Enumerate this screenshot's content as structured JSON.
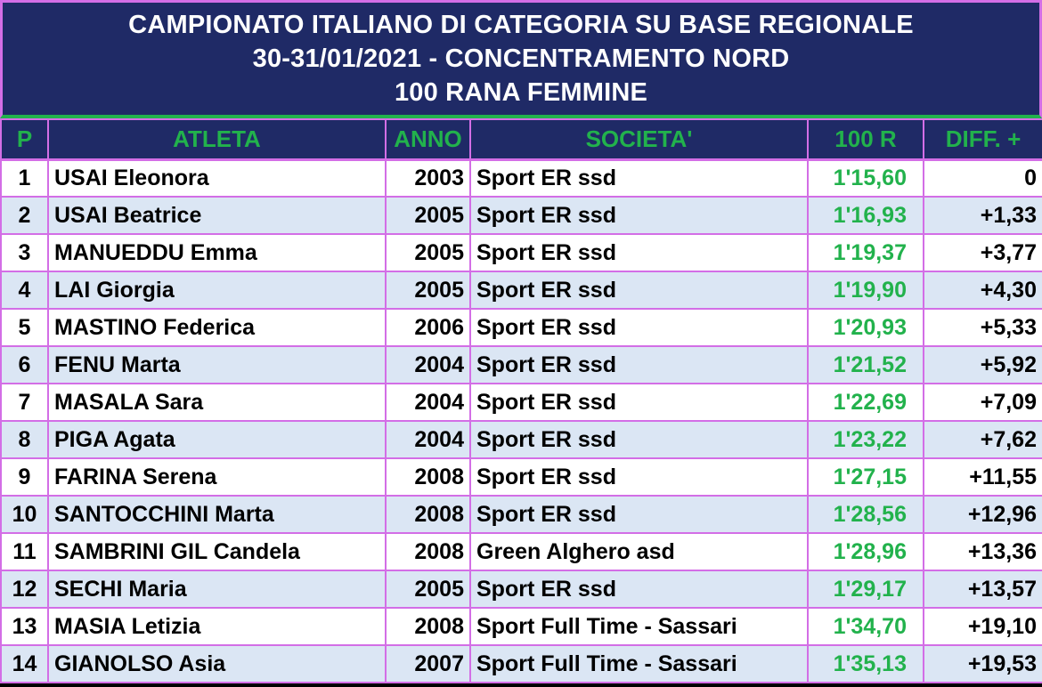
{
  "title": {
    "line1": "CAMPIONATO ITALIANO DI CATEGORIA SU BASE REGIONALE",
    "line2": "30-31/01/2021 - CONCENTRAMENTO NORD",
    "line3": "100 RANA FEMMINE"
  },
  "columns": {
    "pos": "P",
    "athlete": "ATLETA",
    "year": "ANNO",
    "club": "SOCIETA'",
    "time": "100 R",
    "diff": "DIFF. +"
  },
  "rows": [
    {
      "pos": "1",
      "athlete": "USAI Eleonora",
      "year": "2003",
      "club": "Sport ER ssd",
      "time": "1'15,60",
      "diff": "0"
    },
    {
      "pos": "2",
      "athlete": "USAI Beatrice",
      "year": "2005",
      "club": "Sport ER ssd",
      "time": "1'16,93",
      "diff": "+1,33"
    },
    {
      "pos": "3",
      "athlete": "MANUEDDU Emma",
      "year": "2005",
      "club": "Sport ER ssd",
      "time": "1'19,37",
      "diff": "+3,77"
    },
    {
      "pos": "4",
      "athlete": "LAI Giorgia",
      "year": "2005",
      "club": "Sport ER ssd",
      "time": "1'19,90",
      "diff": "+4,30"
    },
    {
      "pos": "5",
      "athlete": "MASTINO Federica",
      "year": "2006",
      "club": "Sport ER ssd",
      "time": "1'20,93",
      "diff": "+5,33"
    },
    {
      "pos": "6",
      "athlete": "FENU Marta",
      "year": "2004",
      "club": "Sport ER ssd",
      "time": "1'21,52",
      "diff": "+5,92"
    },
    {
      "pos": "7",
      "athlete": "MASALA Sara",
      "year": "2004",
      "club": "Sport ER ssd",
      "time": "1'22,69",
      "diff": "+7,09"
    },
    {
      "pos": "8",
      "athlete": "PIGA Agata",
      "year": "2004",
      "club": "Sport ER ssd",
      "time": "1'23,22",
      "diff": "+7,62"
    },
    {
      "pos": "9",
      "athlete": "FARINA Serena",
      "year": "2008",
      "club": "Sport ER ssd",
      "time": "1'27,15",
      "diff": "+11,55"
    },
    {
      "pos": "10",
      "athlete": "SANTOCCHINI Marta",
      "year": "2008",
      "club": "Sport ER ssd",
      "time": "1'28,56",
      "diff": "+12,96"
    },
    {
      "pos": "11",
      "athlete": "SAMBRINI GIL Candela",
      "year": "2008",
      "club": "Green Alghero asd",
      "time": "1'28,96",
      "diff": "+13,36"
    },
    {
      "pos": "12",
      "athlete": "SECHI Maria",
      "year": "2005",
      "club": "Sport ER ssd",
      "time": "1'29,17",
      "diff": "+13,57"
    },
    {
      "pos": "13",
      "athlete": "MASIA Letizia",
      "year": "2008",
      "club": "Sport Full Time - Sassari",
      "time": "1'34,70",
      "diff": "+19,10"
    },
    {
      "pos": "14",
      "athlete": "GIANOLSO Asia",
      "year": "2007",
      "club": "Sport Full Time - Sassari",
      "time": "1'35,13",
      "diff": "+19,53"
    }
  ],
  "colors": {
    "header_bg": "#1f2a66",
    "header_text": "#22b24c",
    "grid_border": "#d36ee6",
    "row_alt_bg": "#dbe6f4",
    "time_text": "#22b24c"
  }
}
